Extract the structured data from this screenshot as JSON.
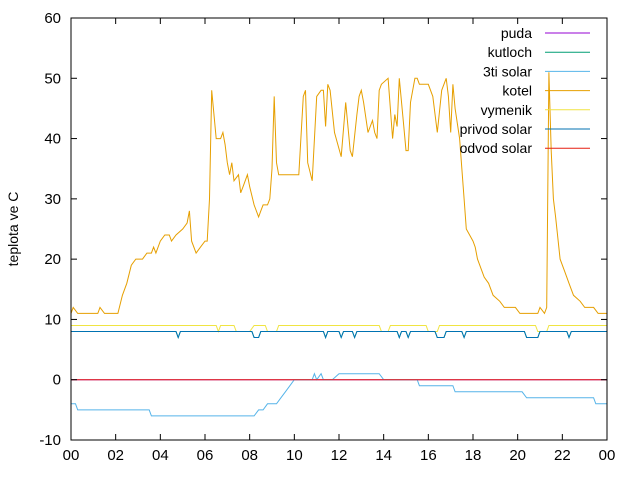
{
  "chart_data": {
    "type": "line",
    "title": "",
    "xlabel": "",
    "ylabel": "teplota ve C",
    "xlim": [
      0,
      24
    ],
    "ylim": [
      -10,
      60
    ],
    "x_ticks": [
      "00",
      "02",
      "04",
      "06",
      "08",
      "10",
      "12",
      "14",
      "16",
      "18",
      "20",
      "22",
      "00"
    ],
    "y_ticks": [
      -10,
      0,
      10,
      20,
      30,
      40,
      50,
      60
    ],
    "legend_position": "top-right",
    "grid": false,
    "series": [
      {
        "name": "puda",
        "color": "#9400d3",
        "points": [
          [
            0,
            0
          ],
          [
            24,
            0
          ]
        ]
      },
      {
        "name": "kutloch",
        "color": "#009e73",
        "points": [
          [
            0,
            8
          ],
          [
            4.7,
            8
          ],
          [
            4.8,
            7
          ],
          [
            4.9,
            8
          ],
          [
            8.1,
            8
          ],
          [
            8.2,
            7
          ],
          [
            8.4,
            7
          ],
          [
            8.5,
            8
          ],
          [
            11.3,
            8
          ],
          [
            11.4,
            7
          ],
          [
            11.5,
            8
          ],
          [
            12,
            8
          ],
          [
            12.1,
            7
          ],
          [
            12.2,
            8
          ],
          [
            12.6,
            8
          ],
          [
            12.7,
            7
          ],
          [
            12.8,
            8
          ],
          [
            14.6,
            8
          ],
          [
            14.7,
            7
          ],
          [
            14.8,
            8
          ],
          [
            15,
            8
          ],
          [
            15.1,
            7
          ],
          [
            15.2,
            8
          ],
          [
            16.3,
            8
          ],
          [
            16.4,
            7
          ],
          [
            16.7,
            7
          ],
          [
            16.8,
            8
          ],
          [
            17.5,
            8
          ],
          [
            17.6,
            7
          ],
          [
            17.7,
            8
          ],
          [
            20.3,
            8
          ],
          [
            20.4,
            7
          ],
          [
            20.9,
            7
          ],
          [
            21,
            8
          ],
          [
            22.2,
            8
          ],
          [
            22.3,
            7
          ],
          [
            22.4,
            8
          ],
          [
            24,
            8
          ]
        ]
      },
      {
        "name": "3ti solar",
        "color": "#56b4e9",
        "points": [
          [
            0,
            -4
          ],
          [
            0.2,
            -4
          ],
          [
            0.3,
            -5
          ],
          [
            3.5,
            -5
          ],
          [
            3.6,
            -6
          ],
          [
            8.2,
            -6
          ],
          [
            8.4,
            -5
          ],
          [
            8.6,
            -5
          ],
          [
            8.8,
            -4
          ],
          [
            9.2,
            -4
          ],
          [
            9.4,
            -3
          ],
          [
            9.6,
            -2
          ],
          [
            9.8,
            -1
          ],
          [
            10,
            0
          ],
          [
            10.8,
            0
          ],
          [
            10.9,
            1
          ],
          [
            11,
            0
          ],
          [
            11.2,
            1
          ],
          [
            11.3,
            0
          ],
          [
            11.6,
            0
          ],
          [
            11.7,
            0
          ],
          [
            12,
            1
          ],
          [
            13.8,
            1
          ],
          [
            14,
            0
          ],
          [
            15.5,
            0
          ],
          [
            15.6,
            -1
          ],
          [
            17.1,
            -1
          ],
          [
            17.2,
            -2
          ],
          [
            20.2,
            -2
          ],
          [
            20.4,
            -3
          ],
          [
            23.4,
            -3
          ],
          [
            23.5,
            -4
          ],
          [
            24,
            -4
          ]
        ]
      },
      {
        "name": "kotel",
        "color": "#e69f00",
        "points": [
          [
            0,
            11
          ],
          [
            0.1,
            12
          ],
          [
            0.3,
            11
          ],
          [
            1.2,
            11
          ],
          [
            1.3,
            12
          ],
          [
            1.5,
            11
          ],
          [
            2.1,
            11
          ],
          [
            2.3,
            14
          ],
          [
            2.5,
            16
          ],
          [
            2.7,
            19
          ],
          [
            2.9,
            20
          ],
          [
            3.2,
            20
          ],
          [
            3.4,
            21
          ],
          [
            3.6,
            21
          ],
          [
            3.7,
            22
          ],
          [
            3.8,
            21
          ],
          [
            4,
            23
          ],
          [
            4.2,
            24
          ],
          [
            4.4,
            24
          ],
          [
            4.5,
            23
          ],
          [
            4.7,
            24
          ],
          [
            5,
            25
          ],
          [
            5.2,
            26
          ],
          [
            5.3,
            28
          ],
          [
            5.4,
            23
          ],
          [
            5.6,
            21
          ],
          [
            5.8,
            22
          ],
          [
            6,
            23
          ],
          [
            6.1,
            23
          ],
          [
            6.2,
            30
          ],
          [
            6.3,
            48
          ],
          [
            6.5,
            40
          ],
          [
            6.7,
            40
          ],
          [
            6.8,
            41
          ],
          [
            6.9,
            39
          ],
          [
            7,
            36
          ],
          [
            7.1,
            34
          ],
          [
            7.2,
            36
          ],
          [
            7.3,
            33
          ],
          [
            7.5,
            34
          ],
          [
            7.6,
            31
          ],
          [
            7.7,
            32
          ],
          [
            7.8,
            33
          ],
          [
            7.9,
            34
          ],
          [
            8,
            32
          ],
          [
            8.2,
            29
          ],
          [
            8.4,
            27
          ],
          [
            8.5,
            28
          ],
          [
            8.6,
            29
          ],
          [
            8.8,
            29
          ],
          [
            8.9,
            30
          ],
          [
            9,
            35
          ],
          [
            9.1,
            47
          ],
          [
            9.2,
            36
          ],
          [
            9.3,
            34
          ],
          [
            10.2,
            34
          ],
          [
            10.4,
            47
          ],
          [
            10.5,
            48
          ],
          [
            10.6,
            36
          ],
          [
            10.8,
            33
          ],
          [
            11,
            47
          ],
          [
            11.2,
            48
          ],
          [
            11.3,
            48
          ],
          [
            11.4,
            42
          ],
          [
            11.5,
            49
          ],
          [
            11.6,
            48
          ],
          [
            11.8,
            41
          ],
          [
            12.1,
            37
          ],
          [
            12.3,
            46
          ],
          [
            12.5,
            38
          ],
          [
            12.6,
            37
          ],
          [
            12.8,
            44
          ],
          [
            12.9,
            47
          ],
          [
            13,
            48
          ],
          [
            13.1,
            46
          ],
          [
            13.3,
            41
          ],
          [
            13.5,
            43
          ],
          [
            13.6,
            41
          ],
          [
            13.7,
            40
          ],
          [
            13.8,
            48
          ],
          [
            13.9,
            49
          ],
          [
            14.2,
            50
          ],
          [
            14.4,
            40
          ],
          [
            14.5,
            44
          ],
          [
            14.6,
            42
          ],
          [
            14.7,
            50
          ],
          [
            14.9,
            42
          ],
          [
            15,
            38
          ],
          [
            15.1,
            38
          ],
          [
            15.2,
            46
          ],
          [
            15.4,
            50
          ],
          [
            15.5,
            50
          ],
          [
            15.6,
            49
          ],
          [
            15.7,
            49
          ],
          [
            16,
            49
          ],
          [
            16.2,
            47
          ],
          [
            16.4,
            41
          ],
          [
            16.6,
            48
          ],
          [
            16.8,
            50
          ],
          [
            16.9,
            47
          ],
          [
            17,
            41
          ],
          [
            17.1,
            49
          ],
          [
            17.2,
            45
          ],
          [
            17.4,
            40
          ],
          [
            17.6,
            30
          ],
          [
            17.7,
            25
          ],
          [
            18,
            23
          ],
          [
            18.1,
            22
          ],
          [
            18.2,
            20
          ],
          [
            18.5,
            17
          ],
          [
            18.7,
            16
          ],
          [
            18.9,
            14
          ],
          [
            19.2,
            13
          ],
          [
            19.4,
            12
          ],
          [
            19.9,
            12
          ],
          [
            20.1,
            11
          ],
          [
            20.9,
            11
          ],
          [
            21,
            12
          ],
          [
            21.2,
            11
          ],
          [
            21.3,
            12
          ],
          [
            21.4,
            51
          ],
          [
            21.5,
            38
          ],
          [
            21.6,
            30
          ],
          [
            21.7,
            27
          ],
          [
            21.9,
            20
          ],
          [
            22.1,
            18
          ],
          [
            22.3,
            16
          ],
          [
            22.5,
            14
          ],
          [
            22.8,
            13
          ],
          [
            23,
            12
          ],
          [
            23.4,
            12
          ],
          [
            23.6,
            11
          ],
          [
            24,
            11
          ]
        ]
      },
      {
        "name": "vymenik",
        "color": "#f0e442",
        "points": [
          [
            0,
            9
          ],
          [
            6.5,
            9
          ],
          [
            6.6,
            8
          ],
          [
            6.7,
            9
          ],
          [
            7.3,
            9
          ],
          [
            7.4,
            8
          ],
          [
            8,
            8
          ],
          [
            8.2,
            9
          ],
          [
            8.7,
            9
          ],
          [
            8.8,
            8
          ],
          [
            9.2,
            8
          ],
          [
            9.3,
            9
          ],
          [
            13.8,
            9
          ],
          [
            13.9,
            8
          ],
          [
            14.2,
            8
          ],
          [
            14.3,
            9
          ],
          [
            15.9,
            9
          ],
          [
            16,
            8
          ],
          [
            16.4,
            8
          ],
          [
            16.5,
            9
          ],
          [
            20.8,
            9
          ],
          [
            20.9,
            8
          ],
          [
            21.3,
            8
          ],
          [
            21.4,
            9
          ],
          [
            24,
            9
          ]
        ]
      },
      {
        "name": "privod solar",
        "color": "#0072b2",
        "points": [
          [
            0,
            8
          ],
          [
            4.7,
            8
          ],
          [
            4.8,
            7
          ],
          [
            4.9,
            8
          ],
          [
            8.1,
            8
          ],
          [
            8.2,
            7
          ],
          [
            8.4,
            7
          ],
          [
            8.5,
            8
          ],
          [
            11.3,
            8
          ],
          [
            11.4,
            7
          ],
          [
            11.5,
            8
          ],
          [
            12,
            8
          ],
          [
            12.1,
            7
          ],
          [
            12.2,
            8
          ],
          [
            12.6,
            8
          ],
          [
            12.7,
            7
          ],
          [
            12.8,
            8
          ],
          [
            14.6,
            8
          ],
          [
            14.7,
            7
          ],
          [
            14.8,
            8
          ],
          [
            15,
            8
          ],
          [
            15.1,
            7
          ],
          [
            15.2,
            8
          ],
          [
            16.3,
            8
          ],
          [
            16.4,
            7
          ],
          [
            16.7,
            7
          ],
          [
            16.8,
            8
          ],
          [
            17.5,
            8
          ],
          [
            17.6,
            7
          ],
          [
            17.7,
            8
          ],
          [
            20.3,
            8
          ],
          [
            20.4,
            7
          ],
          [
            20.9,
            7
          ],
          [
            21,
            8
          ],
          [
            22.2,
            8
          ],
          [
            22.3,
            7
          ],
          [
            22.4,
            8
          ],
          [
            24,
            8
          ]
        ]
      },
      {
        "name": "odvod solar",
        "color": "#e51e10",
        "points": [
          [
            0,
            0
          ],
          [
            24,
            0
          ]
        ]
      }
    ]
  }
}
